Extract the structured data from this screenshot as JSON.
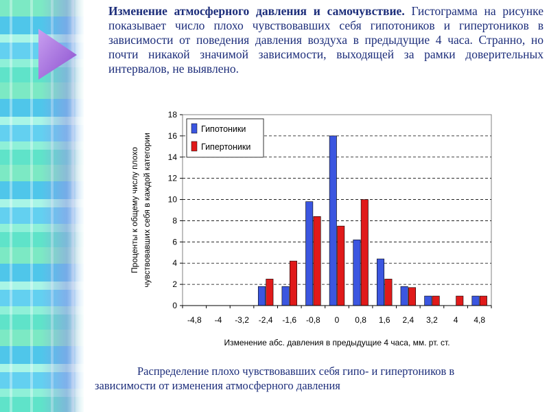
{
  "intro": {
    "title": "Изменение атмосферного давления и самочувствие.",
    "body": "Гистограмма на рисунке показывает число плохо чувствовавших себя гипотоников и гипертоников в зависимости от поведения давления воздуха в предыдущие 4 часа. Странно, но почти никакой значимой зависимости, выходящей за рамки доверительных интервалов, не выявлено."
  },
  "caption": {
    "line1": "Распределение плохо чувствовавших себя гипо- и гипертоников в",
    "line2": "зависимости от изменения атмосферного давления"
  },
  "colors": {
    "hypo": "#3b56e0",
    "hyper": "#e01a1a",
    "text": "#1c2d7a",
    "triangle": "#a76bd6"
  },
  "chart_data": {
    "type": "bar",
    "categories": [
      "-4,8",
      "-4",
      "-3,2",
      "-2,4",
      "-1,6",
      "-0,8",
      "0",
      "0,8",
      "1,6",
      "2,4",
      "3,2",
      "4",
      "4,8"
    ],
    "series": [
      {
        "name": "Гипотоники",
        "values": [
          0,
          0,
          0,
          1.8,
          1.8,
          9.8,
          16.0,
          6.2,
          4.4,
          1.8,
          0.9,
          0,
          0.9
        ]
      },
      {
        "name": "Гипертоники",
        "values": [
          0,
          0,
          0,
          2.5,
          4.2,
          8.4,
          7.5,
          10.0,
          2.5,
          1.7,
          0.9,
          0.9,
          0.9
        ]
      }
    ],
    "xlabel": "Изменение абс. давления в предыдущие 4 часа, мм. рт. ст.",
    "ylabel": [
      "Проценты к общему числу плохо",
      "чувствовавших себя в каждой категории"
    ],
    "yticks": [
      0,
      2,
      4,
      6,
      8,
      10,
      12,
      14,
      16,
      18
    ],
    "ylim": [
      0,
      18
    ],
    "grid": true,
    "legend": "top-left"
  }
}
